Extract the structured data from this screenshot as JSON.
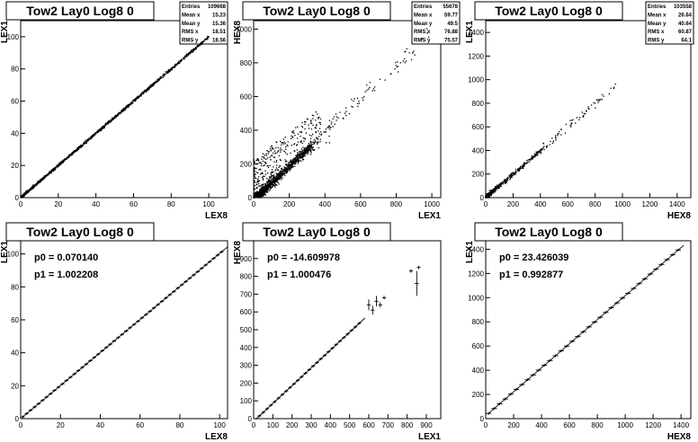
{
  "chart_data": [
    {
      "type": "scatter",
      "title": "Tow2 Lay0 Log8 0",
      "xlabel": "LEX8",
      "ylabel": "LEX1",
      "xlim": [
        0,
        110
      ],
      "ylim": [
        0,
        110
      ],
      "xticks": [
        0,
        20,
        40,
        60,
        80,
        100
      ],
      "yticks": [
        0,
        20,
        40,
        60,
        80,
        100
      ],
      "stats": [
        {
          "label": "Entries",
          "value": "109668"
        },
        {
          "label": "Mean x",
          "value": "15.23"
        },
        {
          "label": "Mean y",
          "value": "15.36"
        },
        {
          "label": "RMS x",
          "value": "18.51"
        },
        {
          "label": "RMS y",
          "value": "18.56"
        }
      ],
      "trend": {
        "slope": 1.0,
        "intercept": 0.0,
        "x_range": [
          0,
          100
        ],
        "density": "dense-band"
      }
    },
    {
      "type": "scatter",
      "title": "Tow2 Lay0 Log8 0",
      "xlabel": "LEX1",
      "ylabel": "HEX8",
      "xlim": [
        0,
        1050
      ],
      "ylim": [
        0,
        1050
      ],
      "xticks": [
        0,
        200,
        400,
        600,
        800,
        1000
      ],
      "yticks": [
        0,
        200,
        400,
        600,
        800,
        1000
      ],
      "stats": [
        {
          "label": "Entries",
          "value": "55678"
        },
        {
          "label": "Mean x",
          "value": "59.77"
        },
        {
          "label": "Mean y",
          "value": "49.5"
        },
        {
          "label": "RMS x",
          "value": "76.88"
        },
        {
          "label": "RMS y",
          "value": "75.57"
        }
      ],
      "trend": {
        "slope": 1.0,
        "intercept": -15,
        "x_range": [
          0,
          1000
        ],
        "density": "dense-low-with-noise"
      }
    },
    {
      "type": "scatter",
      "title": "Tow2 Lay0 Log8 0",
      "xlabel": "HEX8",
      "ylabel": "LEX1",
      "xlim": [
        0,
        1500
      ],
      "ylim": [
        0,
        1500
      ],
      "xticks": [
        0,
        200,
        400,
        600,
        800,
        1000,
        1200,
        1400
      ],
      "yticks": [
        0,
        200,
        400,
        600,
        800,
        1000,
        1200,
        1400
      ],
      "stats": [
        {
          "label": "Entries",
          "value": "103558"
        },
        {
          "label": "Mean x",
          "value": "26.64"
        },
        {
          "label": "Mean y",
          "value": "40.64"
        },
        {
          "label": "RMS x",
          "value": "60.87"
        },
        {
          "label": "RMS y",
          "value": "64.1"
        }
      ],
      "trend": {
        "slope": 1.0,
        "intercept": 0,
        "x_range": [
          0,
          1000
        ],
        "density": "sparse"
      }
    },
    {
      "type": "line",
      "title": "Tow2 Lay0 Log8 0",
      "xlabel": "LEX8",
      "ylabel": "LEX1",
      "xlim": [
        0,
        104
      ],
      "ylim": [
        0,
        108
      ],
      "xticks": [
        0,
        20,
        40,
        60,
        80,
        100
      ],
      "yticks": [
        0,
        20,
        40,
        60,
        80,
        100
      ],
      "fit": {
        "p0_text": "p0 = 0.070140",
        "p1_text": "p1 = 1.002208",
        "p0": 0.07014,
        "p1": 1.002208
      },
      "profile": {
        "x_start": 1,
        "x_end": 102,
        "step": 2
      }
    },
    {
      "type": "line",
      "title": "Tow2 Lay0 Log8 0",
      "xlabel": "LEX1",
      "ylabel": "HEX8",
      "xlim": [
        0,
        975
      ],
      "ylim": [
        0,
        1000
      ],
      "xticks": [
        0,
        100,
        200,
        300,
        400,
        500,
        600,
        700,
        800,
        900
      ],
      "yticks": [
        0,
        100,
        200,
        300,
        400,
        500,
        600,
        700,
        800,
        900
      ],
      "fit": {
        "p0_text": "p0 = -14.609978",
        "p1_text": "p1 = 1.000476",
        "p0": -14.609978,
        "p1": 1.000476
      },
      "profile": {
        "x_start": 10,
        "x_end": 560,
        "step": 20
      },
      "outliers": [
        {
          "x": 600,
          "y": 640,
          "err": 30
        },
        {
          "x": 620,
          "y": 610,
          "err": 25
        },
        {
          "x": 640,
          "y": 660,
          "err": 30
        },
        {
          "x": 660,
          "y": 640,
          "err": 15
        },
        {
          "x": 680,
          "y": 680,
          "err": 10
        },
        {
          "x": 820,
          "y": 830,
          "err": 10
        },
        {
          "x": 850,
          "y": 760,
          "err": 70
        },
        {
          "x": 860,
          "y": 850,
          "err": 10
        }
      ]
    },
    {
      "type": "line",
      "title": "Tow2 Lay0 Log8 0",
      "xlabel": "HEX8",
      "ylabel": "LEX1",
      "xlim": [
        0,
        1470
      ],
      "ylim": [
        0,
        1470
      ],
      "xticks": [
        0,
        200,
        400,
        600,
        800,
        1000,
        1200,
        1400
      ],
      "yticks": [
        0,
        200,
        400,
        600,
        800,
        1000,
        1200,
        1400
      ],
      "fit": {
        "p0_text": "p0 = 23.426039",
        "p1_text": "p1 = 0.992877",
        "p0": 23.426039,
        "p1": 0.992877
      },
      "profile": {
        "x_start": 20,
        "x_end": 1380,
        "step": 40
      }
    }
  ]
}
